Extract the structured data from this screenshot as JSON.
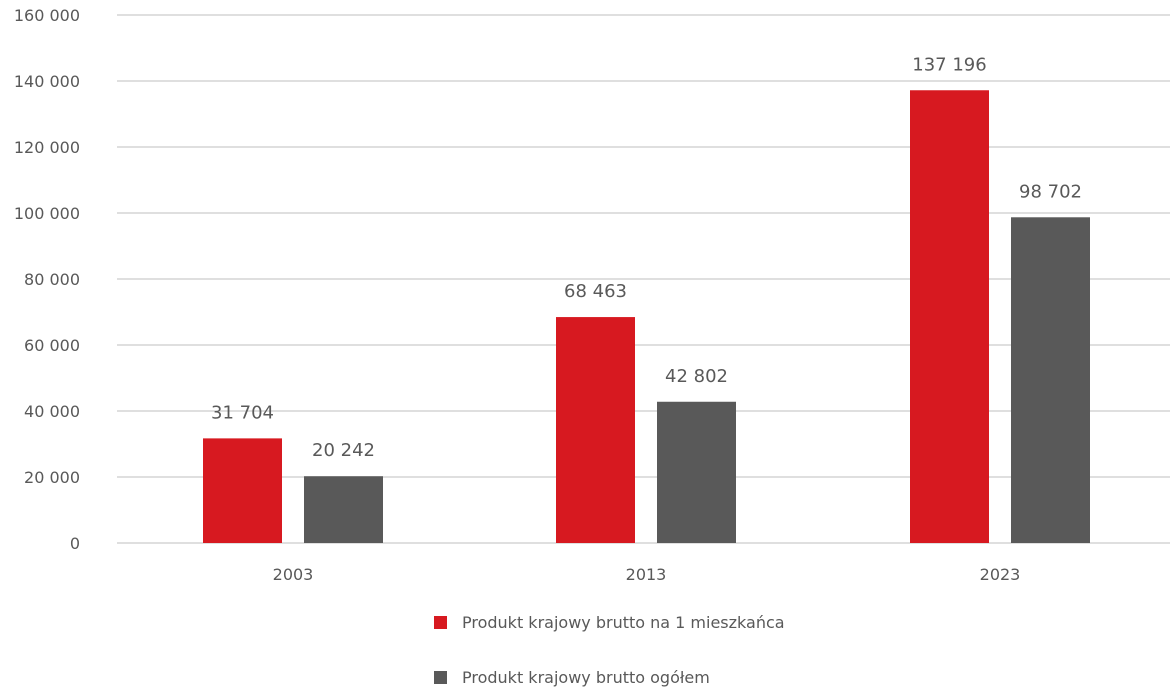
{
  "chart_data": {
    "type": "bar",
    "categories": [
      "2003",
      "2013",
      "2023"
    ],
    "series": [
      {
        "name": "Produkt krajowy brutto na 1 mieszkańca",
        "values": [
          31704,
          68463,
          137196
        ],
        "color": "#d71920"
      },
      {
        "name": "Produkt krajowy brutto ogółem",
        "values": [
          20242,
          42802,
          98702
        ],
        "color": "#595959"
      }
    ],
    "data_labels": [
      [
        "31 704",
        "68 463",
        "137 196"
      ],
      [
        "20 242",
        "42 802",
        "98 702"
      ]
    ],
    "y_ticks": [
      0,
      20000,
      40000,
      60000,
      80000,
      100000,
      120000,
      140000,
      160000
    ],
    "y_tick_labels": [
      "0",
      "20 000",
      "40 000",
      "60 000",
      "80 000",
      "100 000",
      "120 000",
      "140 000",
      "160 000"
    ],
    "ylim": [
      0,
      160000
    ],
    "grid": true,
    "legend_position": "bottom",
    "title": "",
    "xlabel": "",
    "ylabel": ""
  }
}
